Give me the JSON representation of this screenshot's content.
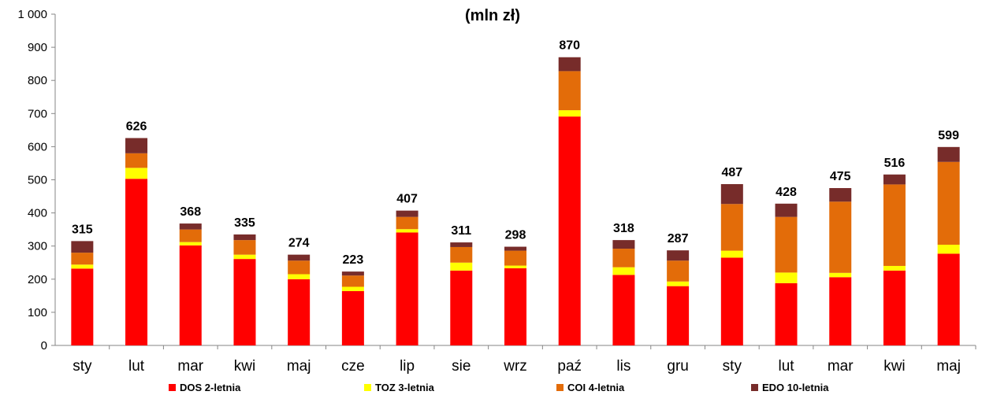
{
  "chart_data": {
    "type": "bar",
    "stacked": true,
    "title": "(mln zł)",
    "categories": [
      "sty",
      "lut",
      "mar",
      "kwi",
      "maj",
      "cze",
      "lip",
      "sie",
      "wrz",
      "paź",
      "lis",
      "gru",
      "sty",
      "lut",
      "mar",
      "kwi",
      "maj"
    ],
    "series": [
      {
        "name": "DOS 2-letnia",
        "color": "#ff0000",
        "values": [
          232,
          503,
          302,
          261,
          200,
          164,
          341,
          226,
          233,
          691,
          213,
          179,
          265,
          188,
          206,
          226,
          277
        ]
      },
      {
        "name": "TOZ 3-letnia",
        "color": "#ffff00",
        "values": [
          12,
          33,
          10,
          13,
          15,
          13,
          10,
          24,
          8,
          19,
          23,
          14,
          21,
          32,
          13,
          14,
          27
        ]
      },
      {
        "name": "COI 4-letnia",
        "color": "#e36c09",
        "values": [
          36,
          44,
          38,
          44,
          41,
          34,
          37,
          47,
          45,
          118,
          56,
          63,
          141,
          168,
          215,
          246,
          250
        ]
      },
      {
        "name": "EDO 10-letnia",
        "color": "#772c2a",
        "values": [
          35,
          46,
          18,
          17,
          18,
          12,
          19,
          14,
          12,
          42,
          26,
          31,
          60,
          40,
          41,
          30,
          45
        ]
      }
    ],
    "totals": [
      "315",
      "626",
      "368",
      "335",
      "274",
      "223",
      "407",
      "311",
      "298",
      "870",
      "318",
      "287",
      "487",
      "428",
      "475",
      "516",
      "599"
    ],
    "ylim": [
      0,
      1000
    ],
    "yticks": [
      "0",
      "100",
      "200",
      "300",
      "400",
      "500",
      "600",
      "700",
      "800",
      "900",
      "1 000"
    ],
    "ytick_values": [
      0,
      100,
      200,
      300,
      400,
      500,
      600,
      700,
      800,
      900,
      1000
    ],
    "grid": false,
    "legend_position": "bottom"
  }
}
